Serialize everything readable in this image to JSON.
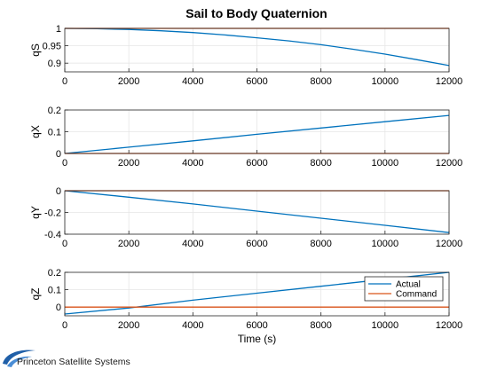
{
  "figure": {
    "title": "Sail to Body Quaternion",
    "logo_text": "Princeton Satellite Systems",
    "colors": {
      "actual": "#0072BD",
      "command": "#D95319",
      "axis": "#262626",
      "grid": "#e6e6e6"
    }
  },
  "chart_data": [
    {
      "type": "line",
      "title": "Sail to Body Quaternion",
      "ylabel": "qS",
      "xlabel": "",
      "xlim": [
        0,
        12000
      ],
      "ylim": [
        0.875,
        1.0
      ],
      "x_ticks": [
        "0",
        "2000",
        "4000",
        "6000",
        "8000",
        "10000",
        "12000"
      ],
      "y_ticks": [
        {
          "v": 0.9,
          "label": "0.9"
        },
        {
          "v": 0.95,
          "label": "0.95"
        },
        {
          "v": 1.0,
          "label": "1"
        }
      ],
      "grid": true,
      "series": [
        {
          "name": "Actual",
          "x": [
            0,
            1000,
            2000,
            3000,
            4000,
            5000,
            6000,
            7000,
            8000,
            9000,
            10000,
            11000,
            12000
          ],
          "y": [
            1.0,
            0.999,
            0.997,
            0.993,
            0.988,
            0.981,
            0.973,
            0.964,
            0.953,
            0.94,
            0.926,
            0.91,
            0.893
          ]
        },
        {
          "name": "Command",
          "x": [
            0,
            12000
          ],
          "y": [
            1.0,
            1.0
          ]
        }
      ]
    },
    {
      "type": "line",
      "ylabel": "qX",
      "xlabel": "",
      "xlim": [
        0,
        12000
      ],
      "ylim": [
        0,
        0.2
      ],
      "x_ticks": [
        "0",
        "2000",
        "4000",
        "6000",
        "8000",
        "10000",
        "12000"
      ],
      "y_ticks": [
        {
          "v": 0,
          "label": "0"
        },
        {
          "v": 0.1,
          "label": "0.1"
        },
        {
          "v": 0.2,
          "label": "0.2"
        }
      ],
      "grid": true,
      "series": [
        {
          "name": "Actual",
          "x": [
            0,
            2000,
            4000,
            6000,
            8000,
            10000,
            12000
          ],
          "y": [
            0,
            0.029,
            0.058,
            0.088,
            0.117,
            0.146,
            0.175
          ]
        },
        {
          "name": "Command",
          "x": [
            0,
            12000
          ],
          "y": [
            0,
            0
          ]
        }
      ]
    },
    {
      "type": "line",
      "ylabel": "qY",
      "xlabel": "",
      "xlim": [
        0,
        12000
      ],
      "ylim": [
        -0.4,
        0
      ],
      "x_ticks": [
        "0",
        "2000",
        "4000",
        "6000",
        "8000",
        "10000",
        "12000"
      ],
      "y_ticks": [
        {
          "v": -0.4,
          "label": "-0.4"
        },
        {
          "v": -0.2,
          "label": "-0.2"
        },
        {
          "v": 0,
          "label": "0"
        }
      ],
      "grid": true,
      "series": [
        {
          "name": "Actual",
          "x": [
            0,
            2000,
            4000,
            6000,
            8000,
            10000,
            12000
          ],
          "y": [
            0,
            -0.06,
            -0.122,
            -0.188,
            -0.253,
            -0.318,
            -0.385
          ]
        },
        {
          "name": "Command",
          "x": [
            0,
            12000
          ],
          "y": [
            0,
            0
          ]
        }
      ]
    },
    {
      "type": "line",
      "ylabel": "qZ",
      "xlabel": "Time (s)",
      "xlim": [
        0,
        12000
      ],
      "ylim": [
        -0.05,
        0.2
      ],
      "x_ticks": [
        "0",
        "2000",
        "4000",
        "6000",
        "8000",
        "10000",
        "12000"
      ],
      "y_ticks": [
        {
          "v": 0,
          "label": "0"
        },
        {
          "v": 0.1,
          "label": "0.1"
        },
        {
          "v": 0.2,
          "label": "0.2"
        }
      ],
      "grid": true,
      "legend": {
        "position": "top-right",
        "entries": [
          "Actual",
          "Command"
        ]
      },
      "series": [
        {
          "name": "Actual",
          "x": [
            0,
            2000,
            4000,
            6000,
            8000,
            10000,
            12000
          ],
          "y": [
            -0.04,
            -0.005,
            0.04,
            0.08,
            0.12,
            0.16,
            0.2
          ]
        },
        {
          "name": "Command",
          "x": [
            0,
            12000
          ],
          "y": [
            0,
            0
          ]
        }
      ]
    }
  ]
}
